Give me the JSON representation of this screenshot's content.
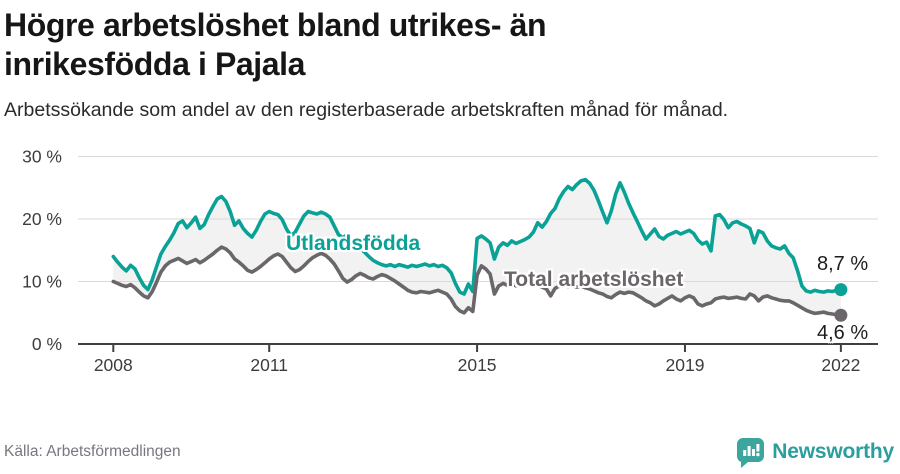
{
  "header": {
    "title": "Högre arbetslöshet bland utrikes- än inrikesfödda i Pajala",
    "subtitle": "Arbetssökande som andel av den registerbaserade arbetskraften månad för månad."
  },
  "chart_data": {
    "type": "line",
    "title": "Högre arbetslöshet bland utrikes- än inrikesfödda i Pajala",
    "frequency": "monthly",
    "x_start": "2008-01",
    "x_end": "2022-01",
    "ylim": [
      0,
      32
    ],
    "unit": "%",
    "grid": "horizontal",
    "legend_position": "inline-labels",
    "band_fill": "#f2f2f2",
    "y_ticks": [
      {
        "value": 0,
        "label": "0 %"
      },
      {
        "value": 10,
        "label": "10 %"
      },
      {
        "value": 20,
        "label": "20 %"
      },
      {
        "value": 30,
        "label": "30 %"
      }
    ],
    "x_ticks": [
      {
        "year": 2008,
        "label": "2008"
      },
      {
        "year": 2011,
        "label": "2011"
      },
      {
        "year": 2015,
        "label": "2015"
      },
      {
        "year": 2019,
        "label": "2019"
      },
      {
        "year": 2022,
        "label": "2022"
      }
    ],
    "series": [
      {
        "name": "Utlandsfödda",
        "color": "#0aa296",
        "end_label": "8,7 %",
        "end_value": 8.7,
        "values": [
          14.0,
          13.1,
          12.3,
          11.7,
          12.6,
          12.0,
          10.6,
          9.4,
          8.7,
          10.3,
          12.4,
          14.4,
          15.6,
          16.6,
          17.8,
          19.3,
          19.7,
          18.6,
          19.4,
          20.3,
          18.5,
          19.1,
          20.7,
          22.0,
          23.2,
          23.6,
          22.8,
          21.2,
          19.0,
          19.7,
          18.5,
          17.7,
          17.1,
          18.2,
          19.6,
          20.8,
          21.2,
          20.9,
          20.7,
          19.9,
          18.4,
          17.3,
          17.9,
          19.2,
          20.5,
          21.2,
          21.0,
          20.8,
          21.1,
          20.8,
          20.3,
          18.9,
          17.5,
          17.0,
          17.5,
          16.6,
          15.9,
          15.3,
          14.7,
          14.0,
          13.4,
          13.0,
          12.7,
          12.5,
          12.7,
          12.4,
          12.7,
          12.5,
          12.3,
          12.6,
          12.4,
          12.6,
          12.8,
          12.5,
          12.7,
          12.4,
          12.6,
          12.2,
          11.4,
          9.7,
          8.3,
          8.0,
          9.6,
          8.4,
          16.9,
          17.3,
          16.8,
          16.2,
          13.6,
          15.5,
          16.2,
          15.8,
          16.5,
          16.1,
          16.4,
          16.7,
          17.1,
          17.9,
          19.4,
          18.7,
          19.6,
          20.9,
          21.7,
          23.3,
          24.4,
          25.2,
          24.7,
          25.5,
          26.1,
          26.3,
          25.7,
          24.6,
          22.9,
          21.1,
          19.4,
          21.3,
          24.0,
          25.8,
          24.3,
          22.5,
          21.0,
          19.6,
          18.1,
          16.8,
          17.6,
          18.4,
          17.2,
          16.8,
          17.4,
          17.7,
          18.0,
          17.6,
          17.9,
          18.2,
          17.7,
          16.6,
          16.0,
          16.3,
          14.9,
          20.5,
          20.7,
          19.9,
          18.6,
          19.4,
          19.6,
          19.2,
          18.9,
          18.5,
          16.2,
          18.1,
          17.8,
          16.5,
          15.7,
          15.4,
          15.2,
          15.7,
          14.5,
          13.8,
          11.7,
          9.3,
          8.5,
          8.3,
          8.6,
          8.4,
          8.3,
          8.5,
          8.4,
          8.6,
          8.7
        ]
      },
      {
        "name": "Total arbetslöshet",
        "color": "#6a666a",
        "end_label": "4,6 %",
        "end_value": 4.6,
        "values": [
          10.0,
          9.7,
          9.4,
          9.2,
          9.5,
          9.0,
          8.3,
          7.7,
          7.4,
          8.4,
          9.9,
          11.5,
          12.5,
          13.1,
          13.4,
          13.7,
          13.3,
          12.9,
          13.2,
          13.5,
          13.0,
          13.4,
          13.9,
          14.4,
          15.0,
          15.5,
          15.2,
          14.6,
          13.6,
          13.1,
          12.5,
          11.8,
          11.5,
          11.9,
          12.4,
          13.0,
          13.6,
          14.1,
          14.4,
          14.0,
          13.1,
          12.2,
          11.6,
          11.9,
          12.5,
          13.2,
          13.8,
          14.2,
          14.5,
          14.2,
          13.6,
          12.8,
          11.7,
          10.5,
          9.9,
          10.3,
          10.9,
          11.3,
          11.0,
          10.6,
          10.4,
          10.8,
          11.1,
          10.9,
          10.5,
          10.1,
          9.6,
          9.1,
          8.6,
          8.3,
          8.2,
          8.4,
          8.3,
          8.2,
          8.4,
          8.6,
          8.3,
          8.0,
          7.2,
          6.0,
          5.3,
          5.0,
          5.8,
          5.2,
          11.0,
          12.5,
          12.0,
          11.2,
          8.0,
          9.3,
          9.7,
          9.4,
          9.6,
          9.3,
          9.5,
          9.7,
          9.5,
          9.8,
          9.4,
          9.1,
          8.8,
          7.7,
          8.9,
          9.3,
          9.5,
          9.2,
          9.4,
          9.1,
          9.3,
          9.0,
          8.8,
          8.5,
          8.2,
          8.0,
          7.6,
          7.4,
          7.9,
          8.3,
          8.1,
          8.3,
          8.2,
          7.8,
          7.4,
          6.9,
          6.6,
          6.1,
          6.4,
          6.9,
          7.3,
          7.7,
          7.2,
          6.9,
          7.4,
          7.7,
          7.4,
          6.4,
          6.1,
          6.4,
          6.6,
          7.2,
          7.4,
          7.5,
          7.3,
          7.4,
          7.5,
          7.3,
          7.2,
          8.0,
          7.7,
          6.9,
          7.5,
          7.7,
          7.4,
          7.2,
          7.0,
          6.9,
          6.9,
          6.6,
          6.2,
          5.8,
          5.4,
          5.1,
          4.9,
          5.0,
          5.1,
          4.9,
          4.8,
          4.7,
          4.6
        ]
      }
    ]
  },
  "colors": {
    "accent_teal": "#0aa296",
    "line_gray": "#6a666a",
    "grid": "#dadada",
    "axis": "#3f3f3f",
    "band": "#f2f2f2",
    "logo_bubble": "#3ba59e",
    "logo_text": "#2b9e9e"
  },
  "footer": {
    "source": "Källa: Arbetsförmedlingen",
    "brand": "Newsworthy"
  }
}
